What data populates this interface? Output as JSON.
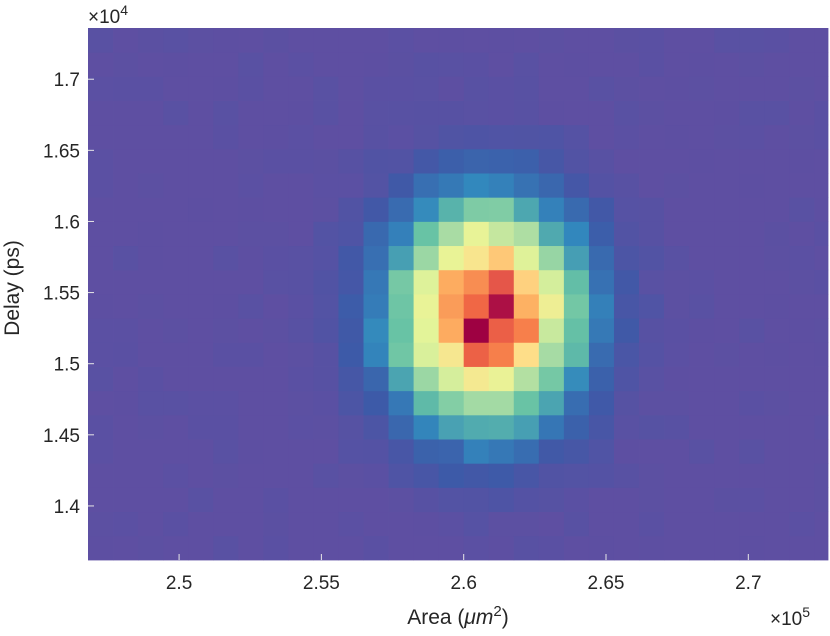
{
  "chart_data": {
    "type": "heatmap",
    "title": "",
    "xlabel": "Area (",
    "xlabel_unit": "μm",
    "xlabel_unit_power": "2",
    "xlabel_close": ")",
    "ylabel": "Delay (ps)",
    "x_multiplier_base": "×10",
    "x_multiplier_power": "5",
    "y_multiplier_base": "×10",
    "y_multiplier_power": "4",
    "x_range": [
      246800,
      272800
    ],
    "y_range": [
      13620,
      17360
    ],
    "x_ticks": [
      {
        "value": 250000,
        "label": "2.5"
      },
      {
        "value": 255000,
        "label": "2.55"
      },
      {
        "value": 260000,
        "label": "2.6"
      },
      {
        "value": 265000,
        "label": "2.65"
      },
      {
        "value": 270000,
        "label": "2.7"
      }
    ],
    "y_ticks": [
      {
        "value": 14000,
        "label": "1.4"
      },
      {
        "value": 14500,
        "label": "1.45"
      },
      {
        "value": 15000,
        "label": "1.5"
      },
      {
        "value": 15500,
        "label": "1.55"
      },
      {
        "value": 16000,
        "label": "1.6"
      },
      {
        "value": 16500,
        "label": "1.65"
      },
      {
        "value": 17000,
        "label": "1.7"
      }
    ],
    "bin_width_x": 880,
    "bin_height_y": 170,
    "density_peak": {
      "x": 260800,
      "y": 15350
    },
    "density_sigma": {
      "x": 2200,
      "y": 520
    },
    "colormap": "spectral",
    "grid": false
  }
}
